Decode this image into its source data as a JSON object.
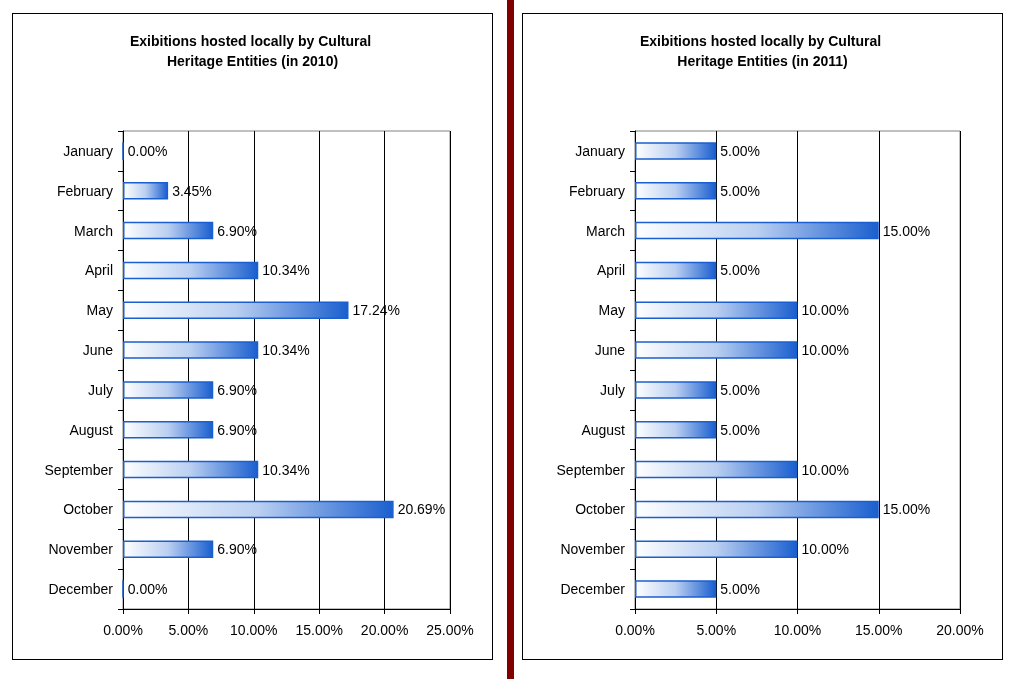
{
  "chart_data": [
    {
      "type": "bar",
      "orientation": "horizontal",
      "title": "Exibitions hosted locally by Cultural Heritage Entities (in 2010)",
      "categories": [
        "January",
        "February",
        "March",
        "April",
        "May",
        "June",
        "July",
        "August",
        "September",
        "October",
        "November",
        "December"
      ],
      "values": [
        0,
        3.45,
        6.9,
        10.34,
        17.24,
        10.34,
        6.9,
        6.9,
        10.34,
        20.69,
        6.9,
        0
      ],
      "value_labels": [
        "0.00%",
        "3.45%",
        "6.90%",
        "10.34%",
        "17.24%",
        "10.34%",
        "6.90%",
        "6.90%",
        "10.34%",
        "20.69%",
        "6.90%",
        "0.00%"
      ],
      "color": "#1a5fcf",
      "xlim": [
        0,
        25
      ],
      "xticks": [
        {
          "value": 0,
          "label": "0.00%"
        },
        {
          "value": 5,
          "label": "5.00%"
        },
        {
          "value": 10,
          "label": "10.00%"
        },
        {
          "value": 15,
          "label": "15.00%"
        },
        {
          "value": 20,
          "label": "20.00%"
        },
        {
          "value": 25,
          "label": "25.00%"
        }
      ],
      "grid": "x"
    },
    {
      "type": "bar",
      "orientation": "horizontal",
      "title": "Exibitions hosted locally by Cultural Heritage Entities (in 2011)",
      "categories": [
        "January",
        "February",
        "March",
        "April",
        "May",
        "June",
        "July",
        "August",
        "September",
        "October",
        "November",
        "December"
      ],
      "values": [
        5,
        5,
        15,
        5,
        10,
        10,
        5,
        5,
        10,
        15,
        10,
        5
      ],
      "value_labels": [
        "5.00%",
        "5.00%",
        "15.00%",
        "5.00%",
        "10.00%",
        "10.00%",
        "5.00%",
        "5.00%",
        "10.00%",
        "15.00%",
        "10.00%",
        "5.00%"
      ],
      "color": "#1a5fcf",
      "xlim": [
        0,
        20
      ],
      "xticks": [
        {
          "value": 0,
          "label": "0.00%"
        },
        {
          "value": 5,
          "label": "5.00%"
        },
        {
          "value": 10,
          "label": "10.00%"
        },
        {
          "value": 15,
          "label": "15.00%"
        },
        {
          "value": 20,
          "label": "20.00%"
        }
      ],
      "grid": "x"
    }
  ]
}
